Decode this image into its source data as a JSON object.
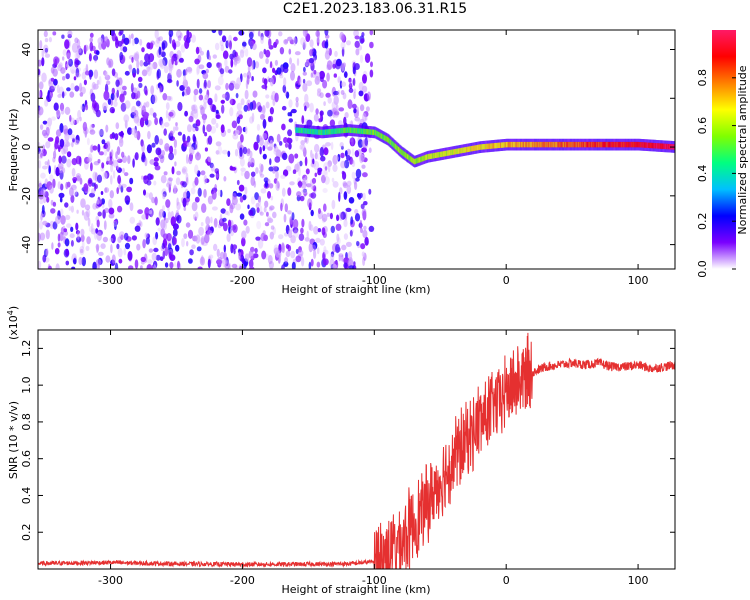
{
  "title": "C2E1.2023.183.06.31.R15",
  "chart_data": [
    {
      "type": "heatmap",
      "xlabel": "Height of straight line (km)",
      "ylabel": "Frequency (Hz)",
      "xlim": [
        -355,
        128
      ],
      "ylim": [
        -50,
        48
      ],
      "xticks": [
        -300,
        -200,
        -100,
        0,
        100
      ],
      "yticks": [
        -40,
        -20,
        0,
        20,
        40
      ],
      "colorbar": {
        "label": "Normalized spectral amplitude",
        "range": [
          0,
          1
        ],
        "ticks": [
          "0.0",
          "0.2",
          "0.4",
          "0.6",
          "0.8"
        ],
        "colors": [
          "#ffffff",
          "#7a00ff",
          "#0000ff",
          "#00c0ff",
          "#00ff80",
          "#80ff00",
          "#ffff00",
          "#ff8000",
          "#ff0000",
          "#ff1a66"
        ]
      },
      "ridge": {
        "x": [
          -160,
          -140,
          -120,
          -100,
          -90,
          -80,
          -70,
          -60,
          -50,
          -40,
          -30,
          -20,
          0,
          20,
          50,
          80,
          100,
          128
        ],
        "y": [
          7,
          6,
          7,
          6,
          3,
          -2,
          -6,
          -4,
          -3,
          -2,
          -1,
          0,
          1,
          1,
          1,
          1,
          1,
          0
        ]
      },
      "noise_region_x": [
        -355,
        -102
      ]
    },
    {
      "type": "line",
      "xlabel": "Height of straight line (km)",
      "ylabel": "SNR (10 * v/v)",
      "multiplier_label": "(x10",
      "multiplier_exp": "4",
      "xlim": [
        -355,
        128
      ],
      "ylim": [
        0,
        13000
      ],
      "xticks": [
        -300,
        -200,
        -100,
        0,
        100
      ],
      "yticks": [
        0.2,
        0.4,
        0.6,
        0.8,
        1.0,
        1.2
      ],
      "series": [
        {
          "color": "#e53030",
          "x": [
            -355,
            -300,
            -250,
            -200,
            -150,
            -120,
            -100,
            -90,
            -80,
            -70,
            -60,
            -50,
            -40,
            -30,
            -20,
            -10,
            0,
            10,
            20,
            30,
            40,
            50,
            60,
            70,
            80,
            90,
            100,
            110,
            120,
            128
          ],
          "y": [
            300,
            350,
            280,
            250,
            260,
            280,
            400,
            900,
            1500,
            2500,
            3500,
            4800,
            6000,
            7000,
            8000,
            8800,
            9600,
            10300,
            10700,
            11000,
            11100,
            11200,
            11100,
            11200,
            11000,
            11000,
            11100,
            10900,
            11000,
            11100
          ]
        }
      ]
    }
  ]
}
